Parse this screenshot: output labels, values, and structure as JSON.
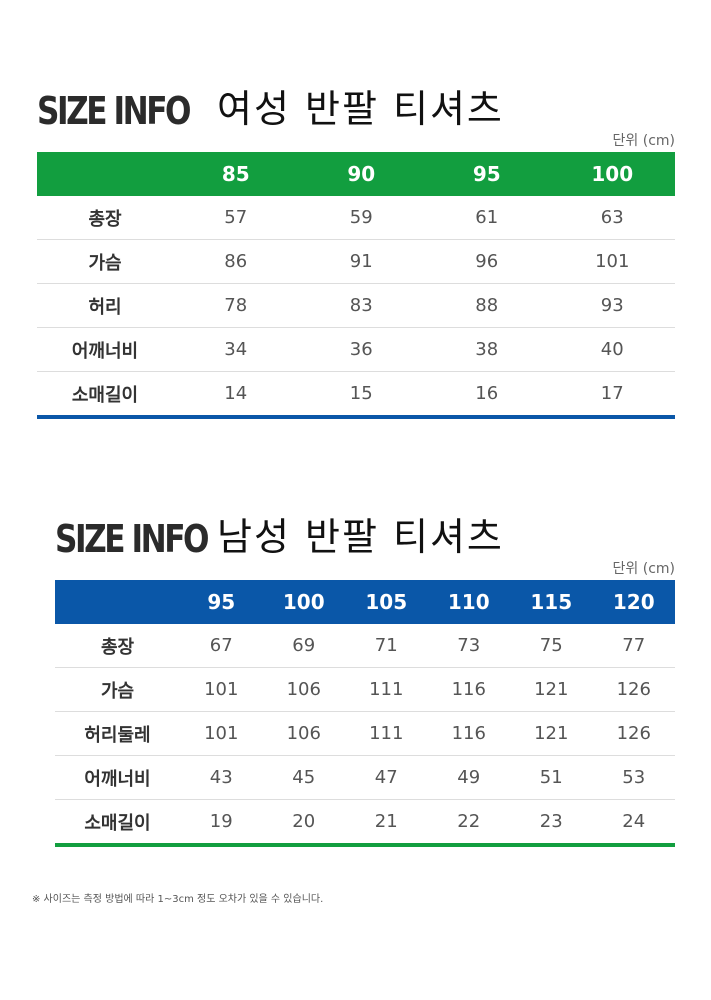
{
  "colors": {
    "green": "#129e3f",
    "blue": "#0a57a8"
  },
  "women": {
    "brand": "SIZE INFO",
    "title": "여성 반팔 티셔츠",
    "unit": "단위 (cm)",
    "sizes": [
      "85",
      "90",
      "95",
      "100"
    ],
    "rows": [
      {
        "label": "총장",
        "values": [
          "57",
          "59",
          "61",
          "63"
        ]
      },
      {
        "label": "가슴",
        "values": [
          "86",
          "91",
          "96",
          "101"
        ]
      },
      {
        "label": "허리",
        "values": [
          "78",
          "83",
          "88",
          "93"
        ]
      },
      {
        "label": "어깨너비",
        "values": [
          "34",
          "36",
          "38",
          "40"
        ]
      },
      {
        "label": "소매길이",
        "values": [
          "14",
          "15",
          "16",
          "17"
        ]
      }
    ]
  },
  "men": {
    "brand": "SIZE INFO",
    "title": "남성 반팔 티셔츠",
    "unit": "단위 (cm)",
    "sizes": [
      "95",
      "100",
      "105",
      "110",
      "115",
      "120"
    ],
    "rows": [
      {
        "label": "총장",
        "values": [
          "67",
          "69",
          "71",
          "73",
          "75",
          "77"
        ]
      },
      {
        "label": "가슴",
        "values": [
          "101",
          "106",
          "111",
          "116",
          "121",
          "126"
        ]
      },
      {
        "label": "허리둘레",
        "values": [
          "101",
          "106",
          "111",
          "116",
          "121",
          "126"
        ]
      },
      {
        "label": "어깨너비",
        "values": [
          "43",
          "45",
          "47",
          "49",
          "51",
          "53"
        ]
      },
      {
        "label": "소매길이",
        "values": [
          "19",
          "20",
          "21",
          "22",
          "23",
          "24"
        ]
      }
    ]
  },
  "footnote": "※ 사이즈는 측정 방법에 따라 1~3cm 정도 오차가 있을 수 있습니다."
}
